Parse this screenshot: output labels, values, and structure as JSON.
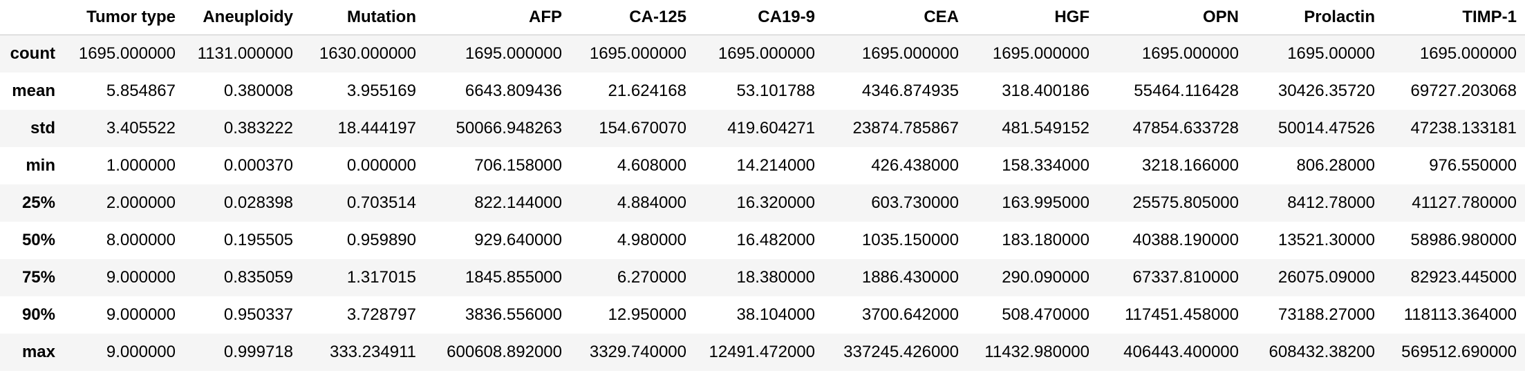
{
  "table": {
    "columns": [
      "",
      "Tumor type",
      "Aneuploidy",
      "Mutation",
      "AFP",
      "CA-125",
      "CA19-9",
      "CEA",
      "HGF",
      "OPN",
      "Prolactin",
      "TIMP-1"
    ],
    "rows": [
      {
        "label": "count",
        "cells": [
          "1695.000000",
          "1131.000000",
          "1630.000000",
          "1695.000000",
          "1695.000000",
          "1695.000000",
          "1695.000000",
          "1695.000000",
          "1695.000000",
          "1695.00000",
          "1695.000000"
        ]
      },
      {
        "label": "mean",
        "cells": [
          "5.854867",
          "0.380008",
          "3.955169",
          "6643.809436",
          "21.624168",
          "53.101788",
          "4346.874935",
          "318.400186",
          "55464.116428",
          "30426.35720",
          "69727.203068"
        ]
      },
      {
        "label": "std",
        "cells": [
          "3.405522",
          "0.383222",
          "18.444197",
          "50066.948263",
          "154.670070",
          "419.604271",
          "23874.785867",
          "481.549152",
          "47854.633728",
          "50014.47526",
          "47238.133181"
        ]
      },
      {
        "label": "min",
        "cells": [
          "1.000000",
          "0.000370",
          "0.000000",
          "706.158000",
          "4.608000",
          "14.214000",
          "426.438000",
          "158.334000",
          "3218.166000",
          "806.28000",
          "976.550000"
        ]
      },
      {
        "label": "25%",
        "cells": [
          "2.000000",
          "0.028398",
          "0.703514",
          "822.144000",
          "4.884000",
          "16.320000",
          "603.730000",
          "163.995000",
          "25575.805000",
          "8412.78000",
          "41127.780000"
        ]
      },
      {
        "label": "50%",
        "cells": [
          "8.000000",
          "0.195505",
          "0.959890",
          "929.640000",
          "4.980000",
          "16.482000",
          "1035.150000",
          "183.180000",
          "40388.190000",
          "13521.30000",
          "58986.980000"
        ]
      },
      {
        "label": "75%",
        "cells": [
          "9.000000",
          "0.835059",
          "1.317015",
          "1845.855000",
          "6.270000",
          "18.380000",
          "1886.430000",
          "290.090000",
          "67337.810000",
          "26075.09000",
          "82923.445000"
        ]
      },
      {
        "label": "90%",
        "cells": [
          "9.000000",
          "0.950337",
          "3.728797",
          "3836.556000",
          "12.950000",
          "38.104000",
          "3700.642000",
          "508.470000",
          "117451.458000",
          "73188.27000",
          "118113.364000"
        ]
      },
      {
        "label": "max",
        "cells": [
          "9.000000",
          "0.999718",
          "333.234911",
          "600608.892000",
          "3329.740000",
          "12491.472000",
          "337245.426000",
          "11432.980000",
          "406443.400000",
          "608432.38200",
          "569512.690000"
        ]
      }
    ]
  }
}
